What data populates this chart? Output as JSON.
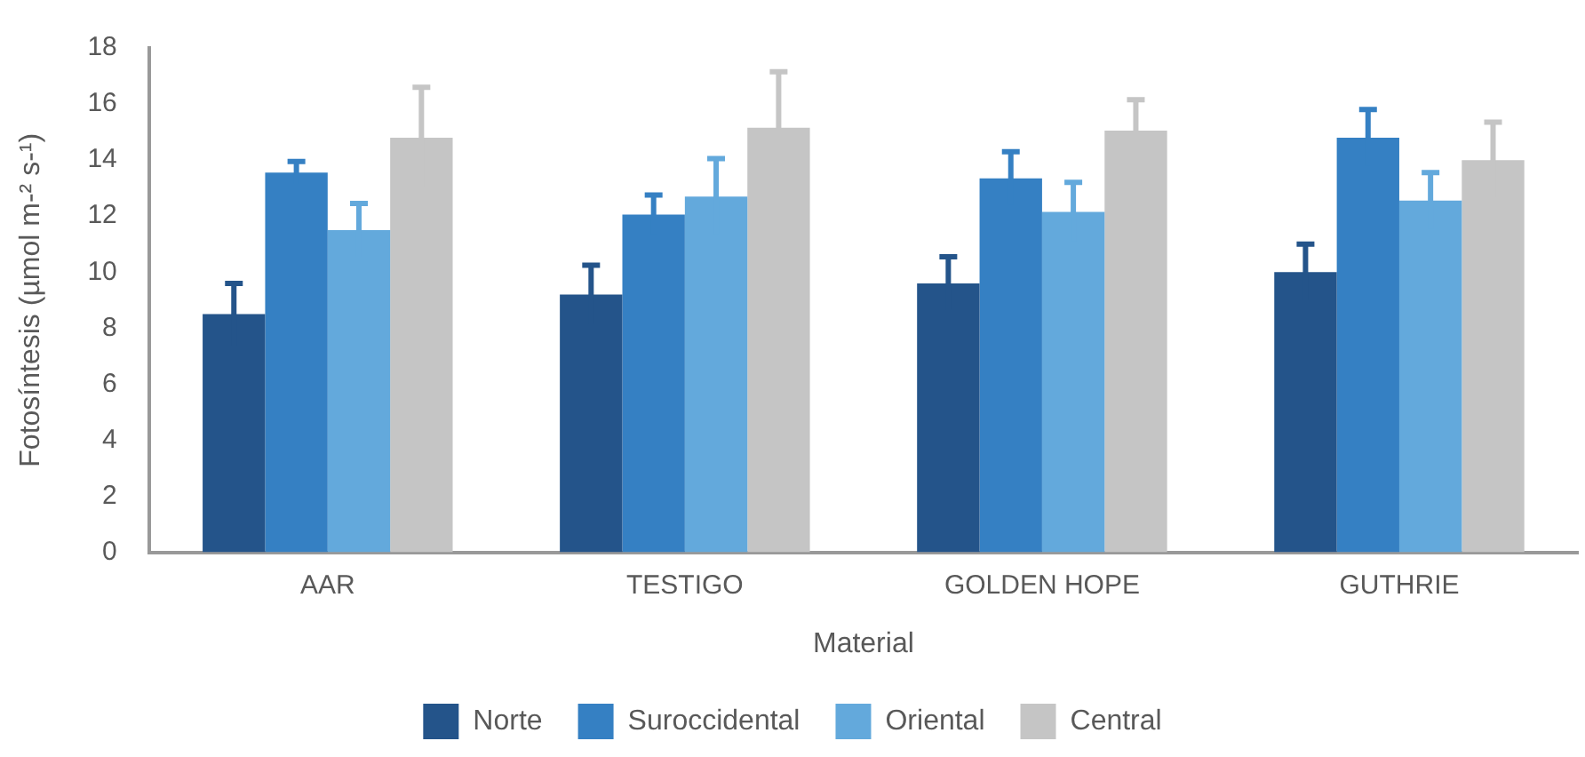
{
  "chart_data": {
    "type": "bar",
    "xlabel": "Material",
    "ylabel": "Fotosíntesis (µmol m-² s-¹)",
    "categories": [
      "AAR",
      "TESTIGO",
      "GOLDEN HOPE",
      "GUTHRIE"
    ],
    "series": [
      {
        "name": "Norte",
        "color": "#24548a",
        "values": [
          8.5,
          9.2,
          9.6,
          10.0
        ],
        "errors": [
          1.1,
          1.05,
          0.95,
          1.0
        ]
      },
      {
        "name": "Suroccidental",
        "color": "#3580c3",
        "values": [
          13.55,
          12.05,
          13.35,
          14.8
        ],
        "errors": [
          0.4,
          0.7,
          0.95,
          1.0
        ]
      },
      {
        "name": "Oriental",
        "color": "#63a9dc",
        "values": [
          11.5,
          12.7,
          12.15,
          12.55
        ],
        "errors": [
          0.95,
          1.35,
          1.05,
          1.0
        ]
      },
      {
        "name": "Central",
        "color": "#c5c5c5",
        "values": [
          14.8,
          15.15,
          15.05,
          14.0
        ],
        "errors": [
          1.8,
          2.0,
          1.1,
          1.35
        ]
      }
    ],
    "ylim": [
      0,
      18
    ],
    "yticks": [
      0,
      2,
      4,
      6,
      8,
      10,
      12,
      14,
      16,
      18
    ],
    "grid": false,
    "legend": "bottom"
  }
}
